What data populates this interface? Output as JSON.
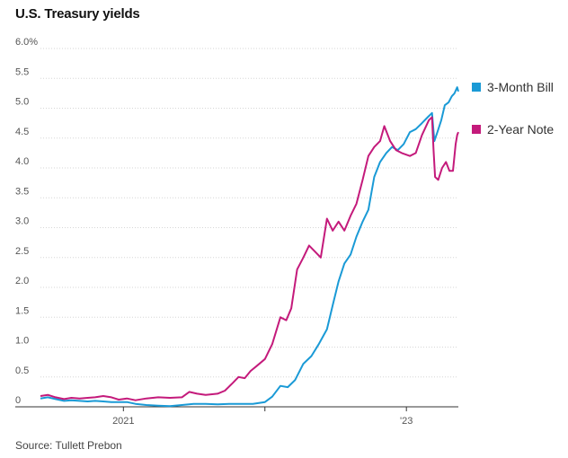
{
  "chart_data": {
    "type": "line",
    "title": "U.S. Treasury yields",
    "source": "Source: Tullett Prebon",
    "xlabel": "",
    "ylabel": "",
    "ylim": [
      0,
      6
    ],
    "yticks": [
      {
        "value": 0,
        "label": "0"
      },
      {
        "value": 0.5,
        "label": "0.5"
      },
      {
        "value": 1.0,
        "label": "1.0"
      },
      {
        "value": 1.5,
        "label": "1.5"
      },
      {
        "value": 2.0,
        "label": "2.0"
      },
      {
        "value": 2.5,
        "label": "2.5"
      },
      {
        "value": 3.0,
        "label": "3.0"
      },
      {
        "value": 3.5,
        "label": "3.5"
      },
      {
        "value": 4.0,
        "label": "4.0"
      },
      {
        "value": 4.5,
        "label": "4.5"
      },
      {
        "value": 5.0,
        "label": "5.0"
      },
      {
        "value": 5.5,
        "label": "5.5"
      },
      {
        "value": 6.0,
        "label": "6.0%"
      }
    ],
    "xlim": [
      "2020-06-01",
      "2023-05-15"
    ],
    "xticks": [
      {
        "date": "2021-01-01",
        "label": "2021"
      },
      {
        "date": "2022-01-01",
        "label": ""
      },
      {
        "date": "2023-01-01",
        "label": "'23"
      }
    ],
    "grid": true,
    "legend_position": "right",
    "series": [
      {
        "name": "3-Month Bill",
        "color": "#1a9ad6",
        "points": [
          [
            "2020-06-01",
            0.14
          ],
          [
            "2020-06-20",
            0.16
          ],
          [
            "2020-07-10",
            0.13
          ],
          [
            "2020-08-01",
            0.1
          ],
          [
            "2020-08-20",
            0.11
          ],
          [
            "2020-09-10",
            0.1
          ],
          [
            "2020-10-01",
            0.09
          ],
          [
            "2020-10-20",
            0.1
          ],
          [
            "2020-11-10",
            0.09
          ],
          [
            "2020-12-01",
            0.08
          ],
          [
            "2020-12-20",
            0.08
          ],
          [
            "2021-01-10",
            0.08
          ],
          [
            "2021-02-01",
            0.05
          ],
          [
            "2021-03-01",
            0.03
          ],
          [
            "2021-04-01",
            0.02
          ],
          [
            "2021-05-01",
            0.01
          ],
          [
            "2021-06-01",
            0.03
          ],
          [
            "2021-07-01",
            0.05
          ],
          [
            "2021-08-01",
            0.05
          ],
          [
            "2021-09-01",
            0.04
          ],
          [
            "2021-10-01",
            0.05
          ],
          [
            "2021-11-01",
            0.05
          ],
          [
            "2021-12-01",
            0.05
          ],
          [
            "2022-01-01",
            0.08
          ],
          [
            "2022-01-20",
            0.17
          ],
          [
            "2022-02-10",
            0.35
          ],
          [
            "2022-03-01",
            0.33
          ],
          [
            "2022-03-20",
            0.45
          ],
          [
            "2022-04-10",
            0.72
          ],
          [
            "2022-05-01",
            0.85
          ],
          [
            "2022-05-20",
            1.05
          ],
          [
            "2022-06-10",
            1.3
          ],
          [
            "2022-06-25",
            1.7
          ],
          [
            "2022-07-10",
            2.1
          ],
          [
            "2022-07-25",
            2.4
          ],
          [
            "2022-08-10",
            2.55
          ],
          [
            "2022-08-25",
            2.85
          ],
          [
            "2022-09-10",
            3.1
          ],
          [
            "2022-09-25",
            3.3
          ],
          [
            "2022-10-10",
            3.85
          ],
          [
            "2022-10-25",
            4.1
          ],
          [
            "2022-11-10",
            4.25
          ],
          [
            "2022-11-25",
            4.35
          ],
          [
            "2022-12-10",
            4.3
          ],
          [
            "2022-12-25",
            4.4
          ],
          [
            "2023-01-10",
            4.6
          ],
          [
            "2023-01-25",
            4.65
          ],
          [
            "2023-02-10",
            4.75
          ],
          [
            "2023-02-25",
            4.85
          ],
          [
            "2023-03-08",
            4.92
          ],
          [
            "2023-03-14",
            4.45
          ],
          [
            "2023-03-22",
            4.6
          ],
          [
            "2023-04-01",
            4.8
          ],
          [
            "2023-04-10",
            5.05
          ],
          [
            "2023-04-20",
            5.1
          ],
          [
            "2023-04-28",
            5.2
          ],
          [
            "2023-05-05",
            5.25
          ],
          [
            "2023-05-12",
            5.35
          ],
          [
            "2023-05-15",
            5.28
          ]
        ]
      },
      {
        "name": "2-Year Note",
        "color": "#c41a7b",
        "points": [
          [
            "2020-06-01",
            0.18
          ],
          [
            "2020-06-20",
            0.2
          ],
          [
            "2020-07-10",
            0.16
          ],
          [
            "2020-08-01",
            0.13
          ],
          [
            "2020-08-20",
            0.15
          ],
          [
            "2020-09-10",
            0.14
          ],
          [
            "2020-10-01",
            0.15
          ],
          [
            "2020-10-20",
            0.16
          ],
          [
            "2020-11-10",
            0.18
          ],
          [
            "2020-12-01",
            0.16
          ],
          [
            "2020-12-20",
            0.12
          ],
          [
            "2021-01-10",
            0.14
          ],
          [
            "2021-02-01",
            0.11
          ],
          [
            "2021-03-01",
            0.14
          ],
          [
            "2021-04-01",
            0.16
          ],
          [
            "2021-05-01",
            0.15
          ],
          [
            "2021-06-01",
            0.16
          ],
          [
            "2021-06-20",
            0.25
          ],
          [
            "2021-07-10",
            0.22
          ],
          [
            "2021-08-01",
            0.2
          ],
          [
            "2021-09-01",
            0.22
          ],
          [
            "2021-09-20",
            0.27
          ],
          [
            "2021-10-10",
            0.4
          ],
          [
            "2021-10-25",
            0.5
          ],
          [
            "2021-11-10",
            0.48
          ],
          [
            "2021-11-25",
            0.6
          ],
          [
            "2021-12-10",
            0.68
          ],
          [
            "2022-01-01",
            0.8
          ],
          [
            "2022-01-20",
            1.05
          ],
          [
            "2022-02-10",
            1.5
          ],
          [
            "2022-02-25",
            1.45
          ],
          [
            "2022-03-10",
            1.65
          ],
          [
            "2022-03-25",
            2.3
          ],
          [
            "2022-04-10",
            2.5
          ],
          [
            "2022-04-25",
            2.7
          ],
          [
            "2022-05-10",
            2.6
          ],
          [
            "2022-05-25",
            2.5
          ],
          [
            "2022-06-10",
            3.15
          ],
          [
            "2022-06-25",
            2.95
          ],
          [
            "2022-07-10",
            3.1
          ],
          [
            "2022-07-25",
            2.95
          ],
          [
            "2022-08-10",
            3.2
          ],
          [
            "2022-08-25",
            3.4
          ],
          [
            "2022-09-10",
            3.8
          ],
          [
            "2022-09-25",
            4.2
          ],
          [
            "2022-10-10",
            4.35
          ],
          [
            "2022-10-25",
            4.45
          ],
          [
            "2022-11-05",
            4.7
          ],
          [
            "2022-11-20",
            4.45
          ],
          [
            "2022-12-05",
            4.3
          ],
          [
            "2022-12-20",
            4.25
          ],
          [
            "2023-01-10",
            4.2
          ],
          [
            "2023-01-25",
            4.25
          ],
          [
            "2023-02-10",
            4.55
          ],
          [
            "2023-02-28",
            4.8
          ],
          [
            "2023-03-08",
            4.85
          ],
          [
            "2023-03-12",
            4.3
          ],
          [
            "2023-03-16",
            3.85
          ],
          [
            "2023-03-24",
            3.8
          ],
          [
            "2023-04-03",
            4.0
          ],
          [
            "2023-04-13",
            4.1
          ],
          [
            "2023-04-22",
            3.95
          ],
          [
            "2023-05-01",
            3.95
          ],
          [
            "2023-05-08",
            4.4
          ],
          [
            "2023-05-12",
            4.55
          ],
          [
            "2023-05-15",
            4.6
          ]
        ]
      }
    ]
  }
}
